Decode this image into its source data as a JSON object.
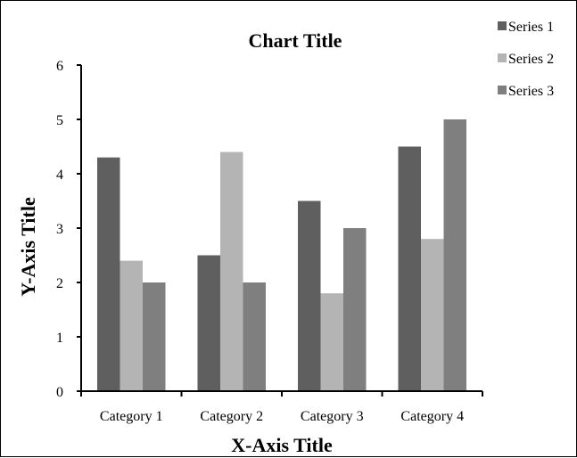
{
  "chart_data": {
    "type": "bar",
    "title": "Chart Title",
    "xlabel": "X-Axis Title",
    "ylabel": "Y-Axis Title",
    "categories": [
      "Category 1",
      "Category 2",
      "Category 3",
      "Category 4"
    ],
    "series": [
      {
        "name": "Series 1",
        "values": [
          4.3,
          2.5,
          3.5,
          4.5
        ],
        "color": "#5f5f5f"
      },
      {
        "name": "Series 2",
        "values": [
          2.4,
          4.4,
          1.8,
          2.8
        ],
        "color": "#b4b4b4"
      },
      {
        "name": "Series 3",
        "values": [
          2.0,
          2.0,
          3.0,
          5.0
        ],
        "color": "#7f7f7f"
      }
    ],
    "ylim": [
      0,
      6
    ],
    "yticks": [
      0,
      1,
      2,
      3,
      4,
      5,
      6
    ],
    "grid": false,
    "legend": "top-right"
  }
}
